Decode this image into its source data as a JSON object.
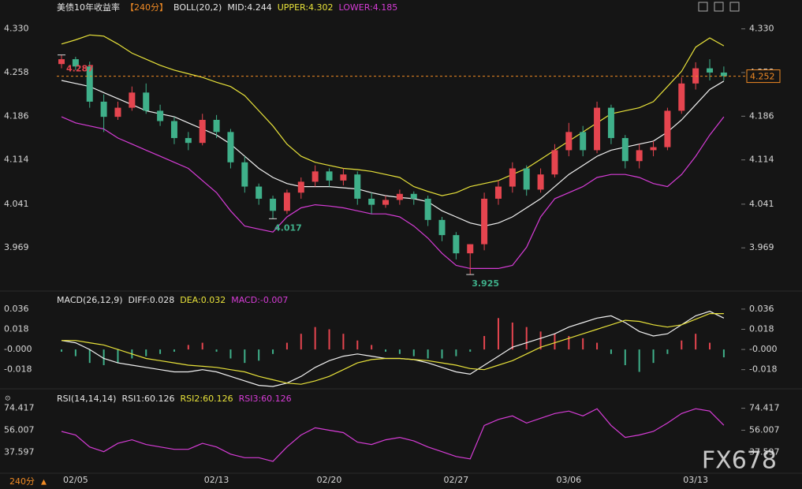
{
  "chart_data": [
    {
      "type": "candlestick",
      "header": [
        {
          "text": "美债10年收益率",
          "color": "#e6e6e6"
        },
        {
          "text": "【240分】",
          "color": "#f08a24"
        },
        {
          "text": "BOLL(20,2)",
          "color": "#e6e6e6"
        },
        {
          "text": "MID:4.244",
          "color": "#e6e6e6"
        },
        {
          "text": "UPPER:4.302",
          "color": "#e8e23a"
        },
        {
          "text": "LOWER:4.185",
          "color": "#d63cd6"
        }
      ],
      "up_color": "#e5454f",
      "down_color": "#3fb08a",
      "open": [
        4.272,
        4.28,
        4.268,
        4.21,
        4.185,
        4.2,
        4.225,
        4.195,
        4.178,
        4.15,
        4.142,
        4.18,
        4.16,
        4.11,
        4.07,
        4.05,
        4.03,
        4.06,
        4.078,
        4.095,
        4.08,
        4.09,
        4.05,
        4.04,
        4.048,
        4.058,
        4.05,
        4.015,
        3.99,
        3.96,
        3.975,
        4.05,
        4.07,
        4.1,
        4.065,
        4.09,
        4.13,
        4.16,
        4.13,
        4.2,
        4.15,
        4.112,
        4.13,
        4.135,
        4.195,
        4.24,
        4.265,
        4.258
      ],
      "high": [
        4.287,
        4.284,
        4.276,
        4.222,
        4.21,
        4.235,
        4.24,
        4.205,
        4.185,
        4.16,
        4.19,
        4.188,
        4.165,
        4.12,
        4.075,
        4.055,
        4.065,
        4.085,
        4.105,
        4.1,
        4.1,
        4.095,
        4.06,
        4.055,
        4.065,
        4.062,
        4.055,
        4.02,
        3.995,
        3.975,
        4.06,
        4.08,
        4.11,
        4.105,
        4.1,
        4.14,
        4.175,
        4.17,
        4.21,
        4.205,
        4.155,
        4.14,
        4.145,
        4.2,
        4.25,
        4.275,
        4.28,
        4.268
      ],
      "low": [
        4.265,
        4.262,
        4.2,
        4.16,
        4.18,
        4.195,
        4.19,
        4.17,
        4.14,
        4.13,
        4.138,
        4.15,
        4.1,
        4.06,
        4.04,
        4.017,
        4.025,
        4.05,
        4.07,
        4.07,
        4.072,
        4.04,
        4.025,
        4.035,
        4.04,
        4.04,
        4.005,
        3.98,
        3.95,
        3.925,
        3.965,
        4.04,
        4.06,
        4.055,
        4.06,
        4.085,
        4.12,
        4.12,
        4.125,
        4.14,
        4.1,
        4.1,
        4.12,
        4.13,
        4.19,
        4.23,
        4.245,
        4.245
      ],
      "close": [
        4.28,
        4.268,
        4.21,
        4.185,
        4.2,
        4.225,
        4.195,
        4.178,
        4.15,
        4.142,
        4.18,
        4.16,
        4.11,
        4.07,
        4.05,
        4.03,
        4.06,
        4.078,
        4.095,
        4.08,
        4.09,
        4.05,
        4.04,
        4.048,
        4.058,
        4.05,
        4.015,
        3.99,
        3.96,
        3.975,
        4.05,
        4.07,
        4.1,
        4.065,
        4.09,
        4.13,
        4.16,
        4.13,
        4.2,
        4.15,
        4.112,
        4.13,
        4.135,
        4.195,
        4.24,
        4.265,
        4.258,
        4.252
      ],
      "series": [
        {
          "color": "#e8e23a",
          "values": [
            4.305,
            4.312,
            4.32,
            4.318,
            4.305,
            4.29,
            4.28,
            4.27,
            4.262,
            4.256,
            4.25,
            4.242,
            4.235,
            4.22,
            4.195,
            4.17,
            4.14,
            4.12,
            4.11,
            4.105,
            4.1,
            4.098,
            4.095,
            4.09,
            4.085,
            4.07,
            4.062,
            4.055,
            4.06,
            4.07,
            4.075,
            4.08,
            4.09,
            4.1,
            4.115,
            4.13,
            4.145,
            4.16,
            4.175,
            4.19,
            4.195,
            4.2,
            4.21,
            4.235,
            4.26,
            4.3,
            4.315,
            4.302
          ]
        },
        {
          "color": "#f2f2f2",
          "values": [
            4.245,
            4.24,
            4.235,
            4.225,
            4.215,
            4.205,
            4.195,
            4.19,
            4.185,
            4.175,
            4.165,
            4.155,
            4.14,
            4.12,
            4.1,
            4.085,
            4.075,
            4.07,
            4.07,
            4.07,
            4.068,
            4.066,
            4.06,
            4.055,
            4.052,
            4.05,
            4.045,
            4.03,
            4.02,
            4.01,
            4.005,
            4.01,
            4.02,
            4.035,
            4.05,
            4.07,
            4.09,
            4.105,
            4.12,
            4.13,
            4.135,
            4.14,
            4.145,
            4.16,
            4.18,
            4.205,
            4.23,
            4.244
          ]
        },
        {
          "color": "#d63cd6",
          "values": [
            4.185,
            4.175,
            4.17,
            4.165,
            4.15,
            4.14,
            4.13,
            4.12,
            4.11,
            4.1,
            4.08,
            4.06,
            4.03,
            4.005,
            4.0,
            3.995,
            4.02,
            4.035,
            4.04,
            4.038,
            4.035,
            4.03,
            4.025,
            4.025,
            4.02,
            4.005,
            3.985,
            3.96,
            3.94,
            3.935,
            3.935,
            3.935,
            3.94,
            3.97,
            4.02,
            4.05,
            4.06,
            4.07,
            4.085,
            4.09,
            4.09,
            4.085,
            4.075,
            4.07,
            4.09,
            4.12,
            4.155,
            4.185
          ]
        }
      ],
      "annotations": [
        {
          "label": "4.287",
          "value": 4.287
        },
        {
          "label": "4.017",
          "value": 4.017
        },
        {
          "label": "3.925",
          "value": 3.925
        }
      ],
      "last_price": 4.252,
      "ylim": [
        3.903,
        4.349
      ],
      "yticks": [
        {
          "value": 4.33,
          "label": "4.330"
        },
        4.258,
        4.186,
        4.114,
        4.041,
        3.969
      ]
    },
    {
      "type": "macd",
      "header": [
        {
          "text": "MACD(26,12,9)",
          "color": "#e6e6e6"
        },
        {
          "text": "DIFF:0.028",
          "color": "#e6e6e6"
        },
        {
          "text": "DEA:0.032",
          "color": "#e8e23a"
        },
        {
          "text": "MACD:-0.007",
          "color": "#d63cd6"
        }
      ],
      "up_color": "#e5454f",
      "down_color": "#3fb08a",
      "histogram": [
        -0.002,
        -0.006,
        -0.012,
        -0.014,
        -0.012,
        -0.008,
        -0.006,
        -0.004,
        -0.002,
        0.004,
        0.006,
        -0.002,
        -0.008,
        -0.012,
        -0.01,
        -0.004,
        0.006,
        0.014,
        0.02,
        0.018,
        0.014,
        0.008,
        0.004,
        -0.002,
        -0.004,
        -0.006,
        -0.008,
        -0.008,
        -0.006,
        -0.002,
        0.012,
        0.028,
        0.024,
        0.02,
        0.016,
        0.014,
        0.012,
        0.01,
        0.006,
        -0.004,
        -0.014,
        -0.02,
        -0.012,
        -0.004,
        0.008,
        0.014,
        0.006,
        -0.007
      ],
      "series": [
        {
          "color": "#f2f2f2",
          "values": [
            0.008,
            0.006,
            0.0,
            -0.008,
            -0.012,
            -0.014,
            -0.016,
            -0.018,
            -0.02,
            -0.02,
            -0.018,
            -0.02,
            -0.024,
            -0.028,
            -0.032,
            -0.033,
            -0.03,
            -0.024,
            -0.016,
            -0.01,
            -0.006,
            -0.004,
            -0.006,
            -0.008,
            -0.008,
            -0.009,
            -0.012,
            -0.016,
            -0.02,
            -0.022,
            -0.014,
            -0.006,
            0.002,
            0.006,
            0.01,
            0.014,
            0.02,
            0.024,
            0.028,
            0.03,
            0.024,
            0.016,
            0.012,
            0.014,
            0.022,
            0.03,
            0.034,
            0.028
          ]
        },
        {
          "color": "#e8e23a",
          "values": [
            0.008,
            0.008,
            0.006,
            0.004,
            0.0,
            -0.004,
            -0.008,
            -0.01,
            -0.012,
            -0.014,
            -0.015,
            -0.016,
            -0.018,
            -0.02,
            -0.024,
            -0.027,
            -0.03,
            -0.031,
            -0.028,
            -0.024,
            -0.018,
            -0.012,
            -0.009,
            -0.008,
            -0.008,
            -0.009,
            -0.01,
            -0.012,
            -0.014,
            -0.017,
            -0.018,
            -0.014,
            -0.01,
            -0.004,
            0.002,
            0.006,
            0.01,
            0.014,
            0.018,
            0.022,
            0.026,
            0.025,
            0.022,
            0.02,
            0.022,
            0.027,
            0.032,
            0.032
          ]
        }
      ],
      "ylim": [
        -0.033,
        0.05
      ],
      "yticks": [
        0.036,
        0.018,
        {
          "value": 0,
          "label": "-0.000"
        },
        -0.018
      ]
    },
    {
      "type": "line",
      "header": [
        {
          "text": "RSI(14,14,14)",
          "color": "#e6e6e6"
        },
        {
          "text": "RSI1:60.126",
          "color": "#e6e6e6"
        },
        {
          "text": "RSI2:60.126",
          "color": "#e8e23a"
        },
        {
          "text": "RSI3:60.126",
          "color": "#d63cd6"
        }
      ],
      "series": [
        {
          "color": "#d63cd6",
          "values": [
            55,
            52,
            42,
            38,
            45,
            48,
            44,
            42,
            40,
            40,
            45,
            42,
            36,
            33,
            33,
            30,
            42,
            52,
            58,
            56,
            54,
            46,
            44,
            48,
            50,
            47,
            42,
            38,
            34,
            32,
            60,
            65,
            68,
            62,
            66,
            70,
            72,
            68,
            74,
            60,
            50,
            52,
            55,
            62,
            70,
            74,
            72,
            60.126
          ]
        }
      ],
      "categories": [
        null,
        "02/05",
        null,
        null,
        null,
        null,
        null,
        null,
        null,
        null,
        null,
        "02/13",
        null,
        null,
        null,
        null,
        null,
        null,
        null,
        "02/20",
        null,
        null,
        null,
        null,
        null,
        null,
        null,
        null,
        "02/27",
        null,
        null,
        null,
        null,
        null,
        null,
        null,
        "03/06",
        null,
        null,
        null,
        null,
        null,
        null,
        null,
        null,
        "03/13",
        null,
        null
      ],
      "ylim": [
        20,
        88
      ],
      "yticks": [
        74.417,
        56.007,
        37.597
      ]
    }
  ],
  "footer": "240分",
  "watermark": "FX678"
}
